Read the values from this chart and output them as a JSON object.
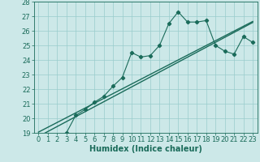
{
  "xlabel": "Humidex (Indice chaleur)",
  "x_values": [
    0,
    1,
    2,
    3,
    4,
    5,
    6,
    7,
    8,
    9,
    10,
    11,
    12,
    13,
    14,
    15,
    16,
    17,
    18,
    19,
    20,
    21,
    22,
    23
  ],
  "y_main": [
    18.8,
    18.8,
    18.8,
    19.0,
    20.2,
    20.6,
    21.1,
    21.5,
    22.2,
    22.8,
    24.5,
    24.2,
    24.3,
    25.0,
    26.5,
    27.3,
    26.6,
    26.6,
    26.7,
    25.0,
    24.6,
    24.4,
    25.6,
    25.2
  ],
  "y_linear1": [
    19.05,
    19.38,
    19.71,
    20.04,
    20.37,
    20.7,
    21.03,
    21.36,
    21.69,
    22.02,
    22.35,
    22.68,
    23.01,
    23.34,
    23.67,
    24.0,
    24.33,
    24.66,
    24.99,
    25.32,
    25.65,
    25.98,
    26.31,
    26.64
  ],
  "y_linear2": [
    18.75,
    19.09,
    19.43,
    19.77,
    20.11,
    20.45,
    20.79,
    21.13,
    21.47,
    21.81,
    22.15,
    22.49,
    22.83,
    23.17,
    23.51,
    23.85,
    24.19,
    24.53,
    24.87,
    25.21,
    25.55,
    25.89,
    26.23,
    26.57
  ],
  "ylim_min": 19,
  "ylim_max": 28,
  "xlim_min": 0,
  "xlim_max": 23,
  "bg_color": "#cce8e8",
  "grid_color": "#99cccc",
  "line_color": "#1a6b5a",
  "tick_fontsize": 6,
  "label_fontsize": 7
}
